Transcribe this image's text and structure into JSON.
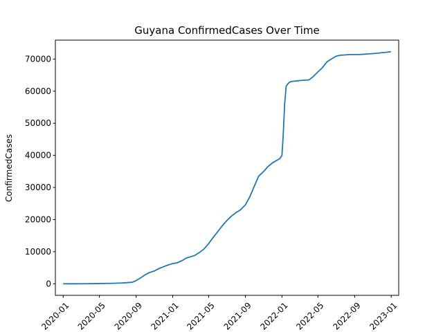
{
  "chart_data": {
    "type": "line",
    "title": "Guyana  ConfirmedCases Over Time",
    "xlabel": "",
    "ylabel": "ConfirmedCases",
    "xlim": [
      "2019-12-06",
      "2023-01-26"
    ],
    "ylim": [
      -3600,
      75900
    ],
    "x_ticks": [
      "2020-01",
      "2020-05",
      "2020-09",
      "2021-01",
      "2021-05",
      "2021-09",
      "2022-01",
      "2022-05",
      "2022-09",
      "2023-01"
    ],
    "y_ticks": [
      0,
      10000,
      20000,
      30000,
      40000,
      50000,
      60000,
      70000
    ],
    "color": "#1f77b4",
    "grid": false,
    "series": [
      {
        "x": [
          "2020-01-01",
          "2020-02-15",
          "2020-03-15",
          "2020-04-15",
          "2020-05-15",
          "2020-06-15",
          "2020-07-15",
          "2020-08-01",
          "2020-08-20",
          "2020-09-01",
          "2020-09-15",
          "2020-10-01",
          "2020-10-15",
          "2020-11-01",
          "2020-11-15",
          "2020-12-01",
          "2020-12-15",
          "2021-01-01",
          "2021-01-15",
          "2021-02-01",
          "2021-02-15",
          "2021-03-01",
          "2021-03-15",
          "2021-04-01",
          "2021-04-15",
          "2021-05-01",
          "2021-05-15",
          "2021-06-01",
          "2021-06-15",
          "2021-07-01",
          "2021-07-15",
          "2021-08-01",
          "2021-08-15",
          "2021-09-01",
          "2021-09-15",
          "2021-10-01",
          "2021-10-15",
          "2021-11-01",
          "2021-11-15",
          "2021-12-01",
          "2021-12-25",
          "2022-01-01",
          "2022-01-05",
          "2022-01-10",
          "2022-01-15",
          "2022-01-20",
          "2022-01-25",
          "2022-02-01",
          "2022-02-10",
          "2022-02-20",
          "2022-03-01",
          "2022-03-15",
          "2022-04-01",
          "2022-04-15",
          "2022-05-01",
          "2022-05-15",
          "2022-06-01",
          "2022-06-15",
          "2022-07-01",
          "2022-07-15",
          "2022-08-01",
          "2022-08-15",
          "2022-09-01",
          "2022-09-15",
          "2022-10-01",
          "2022-10-15",
          "2022-11-01",
          "2022-11-15",
          "2022-12-01",
          "2022-12-15",
          "2022-12-31"
        ],
        "y": [
          0,
          0,
          10,
          50,
          100,
          150,
          250,
          350,
          500,
          1000,
          1800,
          2800,
          3500,
          4000,
          4700,
          5300,
          5800,
          6300,
          6500,
          7200,
          8000,
          8400,
          8800,
          9800,
          10800,
          12500,
          14300,
          16300,
          18000,
          19700,
          21000,
          22200,
          23000,
          24600,
          27000,
          30500,
          33500,
          35000,
          36500,
          37700,
          39000,
          40000,
          46000,
          56000,
          61500,
          62200,
          62700,
          63000,
          63100,
          63200,
          63300,
          63400,
          63500,
          64500,
          66000,
          67200,
          69200,
          70000,
          70900,
          71200,
          71300,
          71400,
          71400,
          71400,
          71500,
          71600,
          71700,
          71800,
          72000,
          72100,
          72300
        ]
      }
    ]
  }
}
